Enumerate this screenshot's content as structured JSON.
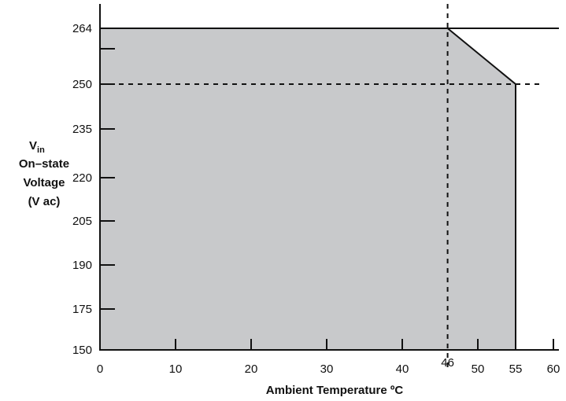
{
  "chart_data": {
    "type": "area",
    "xlabel": "Ambient Temperature ºC",
    "ylabel": {
      "symbol": "V",
      "subscript": "in",
      "line1": "On–state",
      "line2": "Voltage",
      "line3": "(V ac)"
    },
    "x_ticks": [
      "0",
      "10",
      "20",
      "30",
      "40",
      "46",
      "50",
      "55",
      "60"
    ],
    "y_ticks": [
      "150",
      "175",
      "190",
      "205",
      "220",
      "235",
      "250",
      "264"
    ],
    "xlim": [
      0,
      60
    ],
    "ylim": [
      150,
      264
    ],
    "series": [
      {
        "x": [
          0,
          46,
          55,
          55,
          0
        ],
        "y": [
          264,
          264,
          250,
          150,
          150
        ]
      }
    ],
    "reference_lines": [
      {
        "orientation": "vertical",
        "value": 46,
        "style": "dashed"
      },
      {
        "orientation": "horizontal",
        "value": 250,
        "style": "dashed"
      },
      {
        "orientation": "horizontal",
        "value": 264,
        "style": "solid"
      }
    ],
    "fill_color": "#c8c9cb",
    "line_color": "#111111"
  }
}
